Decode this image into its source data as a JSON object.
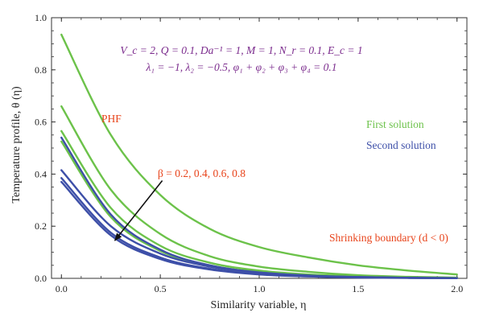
{
  "chart_data": {
    "type": "line",
    "xlabel": "Similarity variable, η",
    "ylabel": "Temperature profile, θ (η)",
    "xlim": [
      -0.05,
      2.05
    ],
    "ylim": [
      0.0,
      1.0
    ],
    "xticks": [
      0.0,
      0.5,
      1.0,
      1.5,
      2.0
    ],
    "xtick_labels": [
      "0.0",
      "0.5",
      "1.0",
      "1.5",
      "2.0"
    ],
    "yticks": [
      0.0,
      0.2,
      0.4,
      0.6,
      0.8,
      1.0
    ],
    "ytick_labels": [
      "0.0",
      "0.2",
      "0.4",
      "0.6",
      "0.8",
      "1.0"
    ],
    "grid": false,
    "colors": {
      "first": "#6cc24a",
      "second": "#3d4fa8",
      "red_text": "#e8431a",
      "purple_text": "#7a2a8c"
    },
    "params_line1": "V_c = 2, Q = 0.1, Da⁻¹ = 1, M = 1, N_r = 0.1, E_c = 1",
    "params_line2": "λ₁ = −1, λ₂ = −0.5, φ₁ + φ₂ + φ₃ + φ₄ = 0.1",
    "label_phf": "PHF",
    "label_first": "First solution",
    "label_second": "Second solution",
    "label_beta": "β = 0.2, 0.4, 0.6, 0.8",
    "label_shrinking": "Shrinking boundary (d < 0)",
    "series": [
      {
        "group": "first",
        "color": "#6cc24a",
        "x": [
          0,
          0.25,
          0.5,
          0.75,
          1.0,
          1.25,
          1.5,
          1.75,
          2.0
        ],
        "y": [
          0.935,
          0.55,
          0.32,
          0.19,
          0.12,
          0.08,
          0.05,
          0.03,
          0.015
        ]
      },
      {
        "group": "first",
        "color": "#6cc24a",
        "x": [
          0,
          0.25,
          0.5,
          0.75,
          1.0,
          1.25,
          1.5,
          1.75,
          2.0
        ],
        "y": [
          0.66,
          0.34,
          0.17,
          0.085,
          0.045,
          0.025,
          0.012,
          0.006,
          0.003
        ]
      },
      {
        "group": "first",
        "color": "#6cc24a",
        "x": [
          0,
          0.25,
          0.5,
          0.75,
          1.0,
          1.25,
          1.5,
          1.75,
          2.0
        ],
        "y": [
          0.565,
          0.27,
          0.125,
          0.06,
          0.03,
          0.015,
          0.008,
          0.004,
          0.002
        ]
      },
      {
        "group": "first",
        "color": "#6cc24a",
        "x": [
          0,
          0.25,
          0.5,
          0.75,
          1.0,
          1.25,
          1.5,
          1.75,
          2.0
        ],
        "y": [
          0.525,
          0.235,
          0.105,
          0.05,
          0.024,
          0.012,
          0.006,
          0.003,
          0.0015
        ]
      },
      {
        "group": "second",
        "color": "#3d4fa8",
        "x": [
          0,
          0.25,
          0.5,
          0.75,
          1.0,
          1.25,
          1.5,
          1.75,
          2.0
        ],
        "y": [
          0.54,
          0.245,
          0.11,
          0.05,
          0.023,
          0.011,
          0.005,
          0.002,
          0.001
        ]
      },
      {
        "group": "second",
        "color": "#3d4fa8",
        "x": [
          0,
          0.25,
          0.5,
          0.75,
          1.0,
          1.25,
          1.5,
          1.75,
          2.0
        ],
        "y": [
          0.415,
          0.2,
          0.095,
          0.045,
          0.022,
          0.01,
          0.005,
          0.002,
          0.001
        ]
      },
      {
        "group": "second",
        "color": "#3d4fa8",
        "x": [
          0,
          0.25,
          0.5,
          0.75,
          1.0,
          1.25,
          1.5,
          1.75,
          2.0
        ],
        "y": [
          0.385,
          0.175,
          0.08,
          0.037,
          0.017,
          0.008,
          0.004,
          0.002,
          0.001
        ]
      },
      {
        "group": "second",
        "color": "#3d4fa8",
        "x": [
          0,
          0.25,
          0.5,
          0.75,
          1.0,
          1.25,
          1.5,
          1.75,
          2.0
        ],
        "y": [
          0.37,
          0.165,
          0.074,
          0.034,
          0.015,
          0.007,
          0.003,
          0.0015,
          0.001
        ]
      }
    ],
    "arrow": {
      "from": [
        0.51,
        0.375
      ],
      "to": [
        0.27,
        0.145
      ]
    }
  }
}
